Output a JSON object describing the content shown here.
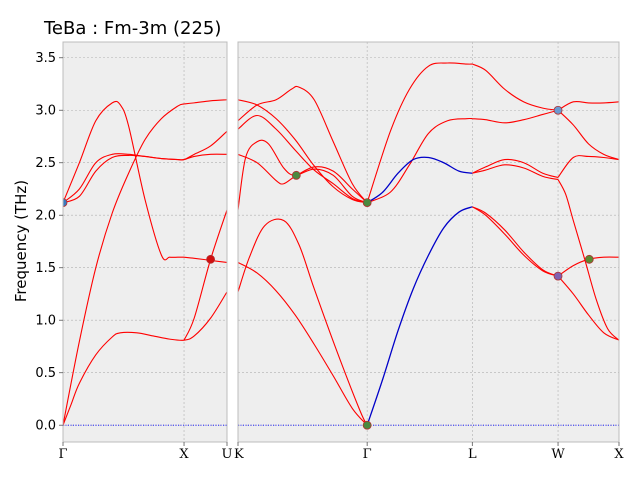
{
  "chart_data": {
    "type": "line",
    "title": "TeBa : Fm-3m (225)",
    "ylabel": "Frequency (THz)",
    "ylim": [
      -0.16,
      3.65
    ],
    "yticks": [
      "0.0",
      "0.5",
      "1.0",
      "1.5",
      "2.0",
      "2.5",
      "3.0",
      "3.5"
    ],
    "ytick_values": [
      0.0,
      0.5,
      1.0,
      1.5,
      2.0,
      2.5,
      3.0,
      3.5
    ],
    "grid": true,
    "colors": {
      "band": "#ff0000",
      "highlight": "#0000c8",
      "zero": "#0000ff",
      "panel_bg": "#eeeeee"
    },
    "panels": [
      {
        "xlim": [
          0,
          1
        ],
        "xticks": [
          {
            "pos": 0.0,
            "label": "Γ"
          },
          {
            "pos": 0.738,
            "label": "X"
          },
          {
            "pos": 1.0,
            "label": "U"
          }
        ],
        "bands": [
          {
            "x": [
              0,
              0.05,
              0.1,
              0.2,
              0.3,
              0.35,
              0.45,
              0.55,
              0.65,
              0.738,
              0.8,
              0.9,
              1.0
            ],
            "y": [
              0,
              0.2,
              0.4,
              0.67,
              0.84,
              0.88,
              0.88,
              0.85,
              0.82,
              0.81,
              0.85,
              1.02,
              1.27
            ]
          },
          {
            "x": [
              0,
              0.1,
              0.2,
              0.3,
              0.4,
              0.5,
              0.6,
              0.7,
              0.738
            ],
            "y": [
              0,
              0.8,
              1.5,
              2.02,
              2.4,
              2.72,
              2.92,
              3.04,
              3.06
            ]
          },
          {
            "x": [
              0.738,
              0.8,
              0.9,
              1.0
            ],
            "y": [
              3.06,
              3.07,
              3.09,
              3.1
            ]
          },
          {
            "x": [
              0,
              0.1,
              0.2,
              0.3,
              0.4,
              0.5,
              0.6,
              0.7,
              0.738,
              0.8,
              0.9,
              1.0
            ],
            "y": [
              2.12,
              2.25,
              2.5,
              2.58,
              2.58,
              2.56,
              2.54,
              2.53,
              2.53,
              2.56,
              2.58,
              2.58
            ]
          },
          {
            "x": [
              0,
              0.1,
              0.2,
              0.3,
              0.4,
              0.5,
              0.6,
              0.7,
              0.738,
              0.8,
              0.9,
              1.0
            ],
            "y": [
              2.12,
              2.18,
              2.42,
              2.55,
              2.57,
              2.56,
              2.54,
              2.53,
              2.53,
              2.58,
              2.66,
              2.8
            ]
          },
          {
            "x": [
              0,
              0.1,
              0.2,
              0.3,
              0.35,
              0.4,
              0.5,
              0.6,
              0.65,
              0.7,
              0.738
            ],
            "y": [
              2.12,
              2.5,
              2.9,
              3.07,
              3.05,
              2.85,
              2.15,
              1.62,
              1.6,
              1.6,
              1.6
            ]
          },
          {
            "x": [
              0.738,
              0.8,
              0.9,
              1.0
            ],
            "y": [
              1.6,
              1.59,
              1.57,
              1.55
            ]
          },
          {
            "x": [
              0.738,
              0.8,
              0.9,
              1.0
            ],
            "y": [
              0.81,
              1.02,
              1.58,
              2.05
            ]
          }
        ],
        "highlight_bands": [],
        "points": [
          {
            "x": 0.0,
            "y": 2.12,
            "color": "#3a7bbf"
          },
          {
            "x": 0.9,
            "y": 1.58,
            "color": "#d01010"
          }
        ]
      },
      {
        "xlim": [
          0,
          1
        ],
        "xticks": [
          {
            "pos": 0.0,
            "label": "K"
          },
          {
            "pos": 0.339,
            "label": "Γ"
          },
          {
            "pos": 0.615,
            "label": "L"
          },
          {
            "pos": 0.84,
            "label": "W"
          },
          {
            "pos": 1.0,
            "label": "X"
          }
        ],
        "bands": [
          {
            "x": [
              0,
              0.05,
              0.1,
              0.15,
              0.2,
              0.25,
              0.3,
              0.339
            ],
            "y": [
              1.55,
              1.45,
              1.28,
              1.05,
              0.77,
              0.47,
              0.16,
              0
            ]
          },
          {
            "x": [
              0,
              0.03,
              0.07,
              0.12,
              0.16,
              0.2,
              0.26,
              0.32,
              0.339
            ],
            "y": [
              1.27,
              1.6,
              1.9,
              1.95,
              1.72,
              1.3,
              0.7,
              0.14,
              0
            ]
          },
          {
            "x": [
              0,
              0.02,
              0.05,
              0.08,
              0.12,
              0.15,
              0.2,
              0.25,
              0.3,
              0.339
            ],
            "y": [
              2.05,
              2.55,
              2.7,
              2.68,
              2.45,
              2.38,
              2.44,
              2.38,
              2.18,
              2.12
            ]
          },
          {
            "x": [
              0,
              0.05,
              0.1,
              0.12,
              0.15,
              0.2,
              0.25,
              0.3,
              0.339
            ],
            "y": [
              2.58,
              2.5,
              2.33,
              2.3,
              2.37,
              2.46,
              2.42,
              2.25,
              2.12
            ]
          },
          {
            "x": [
              0,
              0.05,
              0.1,
              0.15,
              0.2,
              0.25,
              0.3,
              0.339
            ],
            "y": [
              2.82,
              2.95,
              2.82,
              2.62,
              2.43,
              2.3,
              2.16,
              2.12
            ]
          },
          {
            "x": [
              0,
              0.05,
              0.1,
              0.15,
              0.2,
              0.25,
              0.3,
              0.339
            ],
            "y": [
              3.1,
              3.05,
              2.92,
              2.72,
              2.47,
              2.27,
              2.15,
              2.12
            ]
          },
          {
            "x": [
              0,
              0.05,
              0.1,
              0.14,
              0.16,
              0.2,
              0.25,
              0.3,
              0.339
            ],
            "y": [
              2.9,
              3.05,
              3.1,
              3.2,
              3.22,
              3.1,
              2.7,
              2.3,
              2.12
            ]
          },
          {
            "x": [
              0.339,
              0.4,
              0.45,
              0.5,
              0.55,
              0.6,
              0.615
            ],
            "y": [
              2.12,
              2.8,
              3.2,
              3.42,
              3.45,
              3.44,
              3.44
            ]
          },
          {
            "x": [
              0.339,
              0.4,
              0.45,
              0.5,
              0.55,
              0.6,
              0.615
            ],
            "y": [
              2.12,
              2.22,
              2.48,
              2.78,
              2.9,
              2.92,
              2.92
            ]
          },
          {
            "x": [
              0.615,
              0.65,
              0.7,
              0.75,
              0.8,
              0.84
            ],
            "y": [
              3.44,
              3.38,
              3.2,
              3.08,
              3.02,
              3.0
            ]
          },
          {
            "x": [
              0.615,
              0.65,
              0.7,
              0.75,
              0.8,
              0.84
            ],
            "y": [
              2.92,
              2.91,
              2.88,
              2.91,
              2.96,
              3.0
            ]
          },
          {
            "x": [
              0.615,
              0.65,
              0.7,
              0.75,
              0.8,
              0.84
            ],
            "y": [
              2.4,
              2.46,
              2.53,
              2.5,
              2.4,
              2.36
            ]
          },
          {
            "x": [
              0.615,
              0.65,
              0.7,
              0.75,
              0.8,
              0.84
            ],
            "y": [
              2.4,
              2.43,
              2.48,
              2.45,
              2.37,
              2.34
            ]
          },
          {
            "x": [
              0.615,
              0.65,
              0.7,
              0.75,
              0.8,
              0.84
            ],
            "y": [
              2.08,
              2.02,
              1.86,
              1.65,
              1.48,
              1.42
            ]
          },
          {
            "x": [
              0.615,
              0.65,
              0.7,
              0.75,
              0.8,
              0.84
            ],
            "y": [
              2.08,
              2.0,
              1.82,
              1.62,
              1.47,
              1.42
            ]
          },
          {
            "x": [
              0.84,
              0.88,
              0.92,
              0.96,
              1.0
            ],
            "y": [
              3.0,
              3.08,
              3.07,
              3.07,
              3.08
            ]
          },
          {
            "x": [
              0.84,
              0.88,
              0.92,
              0.96,
              1.0
            ],
            "y": [
              3.0,
              2.86,
              2.68,
              2.58,
              2.53
            ]
          },
          {
            "x": [
              0.84,
              0.88,
              0.92,
              0.96,
              1.0
            ],
            "y": [
              2.36,
              2.55,
              2.56,
              2.55,
              2.53
            ]
          },
          {
            "x": [
              0.84,
              0.86,
              0.88,
              0.91,
              0.94,
              0.97,
              1.0
            ],
            "y": [
              2.34,
              2.2,
              1.95,
              1.58,
              1.2,
              0.92,
              0.81
            ]
          },
          {
            "x": [
              0.84,
              0.88,
              0.92,
              0.96,
              1.0
            ],
            "y": [
              1.42,
              1.52,
              1.58,
              1.6,
              1.6
            ]
          },
          {
            "x": [
              0.84,
              0.88,
              0.92,
              0.96,
              1.0
            ],
            "y": [
              1.42,
              1.25,
              1.05,
              0.88,
              0.81
            ]
          }
        ],
        "highlight_bands": [
          {
            "x": [
              0.339,
              0.38,
              0.42,
              0.46,
              0.5,
              0.54,
              0.58,
              0.615
            ],
            "y": [
              2.12,
              2.22,
              2.4,
              2.53,
              2.55,
              2.5,
              2.42,
              2.4
            ]
          },
          {
            "x": [
              0.339,
              0.38,
              0.42,
              0.46,
              0.5,
              0.54,
              0.58,
              0.615
            ],
            "y": [
              0,
              0.44,
              0.9,
              1.3,
              1.62,
              1.88,
              2.03,
              2.08
            ]
          }
        ],
        "points": [
          {
            "x": 0.153,
            "y": 2.38,
            "color": "#4a8a40"
          },
          {
            "x": 0.339,
            "y": 2.12,
            "color": "#4a8a40"
          },
          {
            "x": 0.339,
            "y": 0.0,
            "color": "#4a8a40"
          },
          {
            "x": 0.84,
            "y": 3.0,
            "color": "#6a9ad0"
          },
          {
            "x": 0.84,
            "y": 1.42,
            "color": "#8060b0"
          },
          {
            "x": 0.922,
            "y": 1.58,
            "color": "#5a8a30"
          }
        ]
      }
    ]
  }
}
